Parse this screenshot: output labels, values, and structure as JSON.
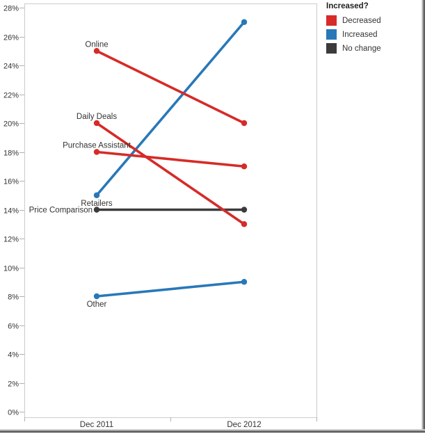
{
  "chart_data": {
    "type": "line",
    "subtype": "slopegraph",
    "title": "",
    "xlabel": "",
    "ylabel": "",
    "x_labels": [
      "Dec 2011",
      "Dec 2012"
    ],
    "ylim": [
      0,
      28
    ],
    "ytick_step": 2,
    "y_tick_labels": [
      "0%",
      "2%",
      "4%",
      "6%",
      "8%",
      "10%",
      "12%",
      "14%",
      "16%",
      "18%",
      "20%",
      "22%",
      "24%",
      "26%",
      "28%"
    ],
    "grid": false,
    "legend_position": "top-right",
    "series": [
      {
        "name": "Online",
        "values": [
          25,
          20
        ],
        "trend": "Decreased",
        "label_position": "above"
      },
      {
        "name": "Daily Deals",
        "values": [
          20,
          13
        ],
        "trend": "Decreased",
        "label_position": "above"
      },
      {
        "name": "Purchase Assistant",
        "values": [
          18,
          17
        ],
        "trend": "Decreased",
        "label_position": "above"
      },
      {
        "name": "Retailers",
        "values": [
          15,
          27
        ],
        "trend": "Increased",
        "label_position": "below"
      },
      {
        "name": "Price Comparison",
        "values": [
          14,
          14
        ],
        "trend": "No change",
        "label_position": "left"
      },
      {
        "name": "Other",
        "values": [
          8,
          9
        ],
        "trend": "Increased",
        "label_position": "below"
      }
    ]
  },
  "legend": {
    "title": "Increased?",
    "items": [
      {
        "label": "Decreased",
        "color": "#d62b28"
      },
      {
        "label": "Increased",
        "color": "#2878b8"
      },
      {
        "label": "No change",
        "color": "#3b3b3b"
      }
    ]
  },
  "colors": {
    "plot_border": "#cccccc",
    "tick": "#b0b0b0",
    "text": "#333333"
  }
}
